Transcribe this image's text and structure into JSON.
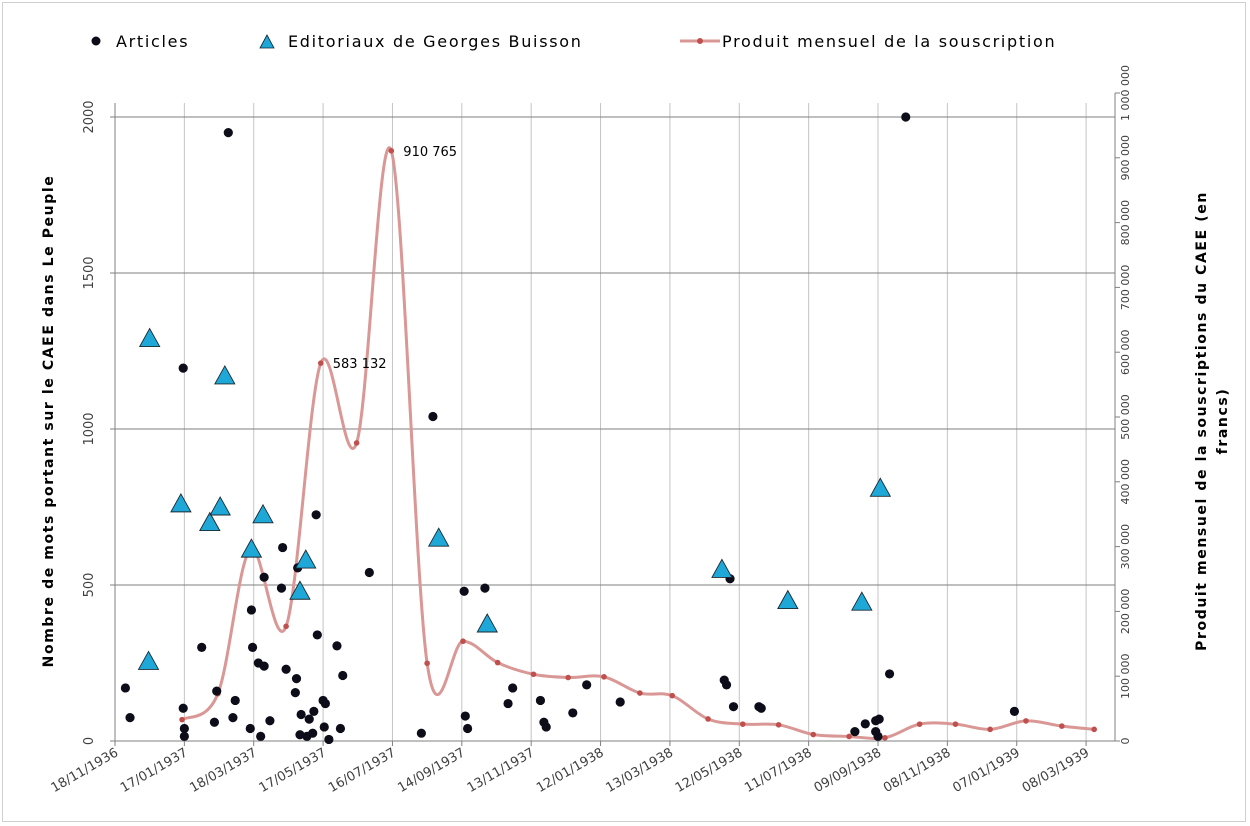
{
  "chart_data": {
    "type": "scatter",
    "legend": {
      "placement": "top",
      "articles": "Articles",
      "editorials": "Editoriaux de Georges Buisson",
      "souscription": "Produit mensuel de la souscription"
    },
    "y_left_title": "Nombre de mots portant sur le CAEE dans Le Peuple",
    "y_right_title": "Produit mensuel de la souscriptions du CAEE (en francs)",
    "x_range": [
      "1936-11-18",
      "1939-04-02"
    ],
    "y_left_range": [
      0,
      2000
    ],
    "y_right_range": [
      0,
      1000000
    ],
    "x_tick_labels": [
      [
        "1936-11-18",
        "18/11/1936"
      ],
      [
        "1937-01-17",
        "17/01/1937"
      ],
      [
        "1937-03-18",
        "18/03/1937"
      ],
      [
        "1937-05-17",
        "17/05/1937"
      ],
      [
        "1937-07-16",
        "16/07/1937"
      ],
      [
        "1937-09-14",
        "14/09/1937"
      ],
      [
        "1937-11-13",
        "13/11/1937"
      ],
      [
        "1938-01-12",
        "12/01/1938"
      ],
      [
        "1938-03-13",
        "13/03/1938"
      ],
      [
        "1938-05-12",
        "12/05/1938"
      ],
      [
        "1938-07-11",
        "11/07/1938"
      ],
      [
        "1938-09-09",
        "09/09/1938"
      ],
      [
        "1938-11-08",
        "08/11/1938"
      ],
      [
        "1939-01-07",
        "07/01/1939"
      ],
      [
        "1939-03-08",
        "08/03/1939"
      ]
    ],
    "y_left_ticks": [
      [
        "0",
        0
      ],
      [
        "500",
        500
      ],
      [
        "1000",
        1000
      ],
      [
        "1500",
        1500
      ],
      [
        "2000",
        2000
      ]
    ],
    "y_right_ticks": [
      [
        "0",
        0
      ],
      [
        "100 000",
        100000
      ],
      [
        "200 000",
        200000
      ],
      [
        "300 000",
        300000
      ],
      [
        "400 000",
        400000
      ],
      [
        "500 000",
        500000
      ],
      [
        "600 000",
        600000
      ],
      [
        "700 000",
        700000
      ],
      [
        "800 000",
        800000
      ],
      [
        "900 000",
        900000
      ],
      [
        "1 000 000",
        1000000
      ]
    ],
    "grid": "horizontal at 500, 1000, 1500, 2000 and vertical at each x tick",
    "colors": {
      "articles": "#0d0d1a",
      "editorials": "#1ea8d8",
      "souscription_line": "#d99795",
      "souscription_marker": "#c0504d"
    },
    "series": [
      {
        "name": "Articles",
        "type": "scatter",
        "points": [
          [
            "1936-11-27",
            170
          ],
          [
            "1936-12-01",
            75
          ],
          [
            "1937-01-16",
            1195
          ],
          [
            "1937-01-16",
            105
          ],
          [
            "1937-01-17",
            40
          ],
          [
            "1937-01-17",
            15
          ],
          [
            "1937-02-01",
            300
          ],
          [
            "1937-02-12",
            60
          ],
          [
            "1937-02-14",
            160
          ],
          [
            "1937-02-24",
            1950
          ],
          [
            "1937-02-28",
            75
          ],
          [
            "1937-03-02",
            130
          ],
          [
            "1937-03-15",
            40
          ],
          [
            "1937-03-16",
            420
          ],
          [
            "1937-03-17",
            300
          ],
          [
            "1937-03-22",
            250
          ],
          [
            "1937-03-24",
            15
          ],
          [
            "1937-03-27",
            240
          ],
          [
            "1937-03-27",
            525
          ],
          [
            "1937-04-01",
            65
          ],
          [
            "1937-04-11",
            490
          ],
          [
            "1937-04-12",
            620
          ],
          [
            "1937-04-15",
            230
          ],
          [
            "1937-04-23",
            155
          ],
          [
            "1937-04-24",
            200
          ],
          [
            "1937-04-25",
            555
          ],
          [
            "1937-04-27",
            20
          ],
          [
            "1937-04-28",
            85
          ],
          [
            "1937-05-03",
            15
          ],
          [
            "1937-05-05",
            70
          ],
          [
            "1937-05-08",
            25
          ],
          [
            "1937-05-09",
            95
          ],
          [
            "1937-05-11",
            725
          ],
          [
            "1937-05-12",
            340
          ],
          [
            "1937-05-17",
            130
          ],
          [
            "1937-05-18",
            45
          ],
          [
            "1937-05-19",
            120
          ],
          [
            "1937-05-22",
            5
          ],
          [
            "1937-05-29",
            305
          ],
          [
            "1937-06-01",
            40
          ],
          [
            "1937-06-03",
            210
          ],
          [
            "1937-06-26",
            540
          ],
          [
            "1937-08-10",
            25
          ],
          [
            "1937-08-20",
            1040
          ],
          [
            "1937-09-16",
            480
          ],
          [
            "1937-09-17",
            80
          ],
          [
            "1937-09-19",
            40
          ],
          [
            "1937-10-04",
            490
          ],
          [
            "1937-10-24",
            120
          ],
          [
            "1937-10-28",
            170
          ],
          [
            "1937-11-21",
            130
          ],
          [
            "1937-11-24",
            60
          ],
          [
            "1937-11-26",
            45
          ],
          [
            "1937-12-19",
            90
          ],
          [
            "1937-12-31",
            180
          ],
          [
            "1938-01-29",
            125
          ],
          [
            "1938-04-29",
            195
          ],
          [
            "1938-05-01",
            180
          ],
          [
            "1938-05-04",
            520
          ],
          [
            "1938-05-07",
            110
          ],
          [
            "1938-05-29",
            110
          ],
          [
            "1938-05-31",
            105
          ],
          [
            "1938-08-20",
            30
          ],
          [
            "1938-08-29",
            55
          ],
          [
            "1938-09-07",
            65
          ],
          [
            "1938-09-07",
            30
          ],
          [
            "1938-09-09",
            15
          ],
          [
            "1938-09-10",
            70
          ],
          [
            "1938-09-19",
            215
          ],
          [
            "1938-10-03",
            2000
          ],
          [
            "1939-01-05",
            95
          ]
        ]
      },
      {
        "name": "Editoriaux de Georges Buisson",
        "type": "scatter",
        "points": [
          [
            "1936-12-18",
            1290
          ],
          [
            "1936-12-17",
            255
          ],
          [
            "1937-01-14",
            760
          ],
          [
            "1937-02-08",
            700
          ],
          [
            "1937-02-17",
            750
          ],
          [
            "1937-02-21",
            1170
          ],
          [
            "1937-03-16",
            615
          ],
          [
            "1937-03-26",
            725
          ],
          [
            "1937-04-27",
            480
          ],
          [
            "1937-05-02",
            580
          ],
          [
            "1937-08-25",
            650
          ],
          [
            "1937-10-06",
            375
          ],
          [
            "1938-04-27",
            550
          ],
          [
            "1938-06-23",
            450
          ],
          [
            "1938-08-26",
            445
          ],
          [
            "1938-09-11",
            810
          ]
        ]
      },
      {
        "name": "Produit mensuel de la souscription",
        "type": "line",
        "axis": "right",
        "points": [
          [
            "1937-01-15",
            33000
          ],
          [
            "1937-02-15",
            73000
          ],
          [
            "1937-03-15",
            296000
          ],
          [
            "1937-04-15",
            177000
          ],
          [
            "1937-05-15",
            583132
          ],
          [
            "1937-06-15",
            460000
          ],
          [
            "1937-07-15",
            910765
          ],
          [
            "1937-08-15",
            120000
          ],
          [
            "1937-09-15",
            154000
          ],
          [
            "1937-10-15",
            121000
          ],
          [
            "1937-11-15",
            103000
          ],
          [
            "1937-12-15",
            98000
          ],
          [
            "1938-01-15",
            99000
          ],
          [
            "1938-02-15",
            74000
          ],
          [
            "1938-03-15",
            70000
          ],
          [
            "1938-04-15",
            34000
          ],
          [
            "1938-05-15",
            26000
          ],
          [
            "1938-06-15",
            25000
          ],
          [
            "1938-07-15",
            10000
          ],
          [
            "1938-08-15",
            7000
          ],
          [
            "1938-09-15",
            5000
          ],
          [
            "1938-10-15",
            26000
          ],
          [
            "1938-11-15",
            26000
          ],
          [
            "1938-12-15",
            18000
          ],
          [
            "1939-01-15",
            31000
          ],
          [
            "1939-02-15",
            23000
          ],
          [
            "1939-03-15",
            18000
          ]
        ],
        "data_labels": [
          [
            "1937-05-15",
            583132,
            "583 132"
          ],
          [
            "1937-07-15",
            910765,
            "910 765"
          ]
        ]
      }
    ]
  }
}
